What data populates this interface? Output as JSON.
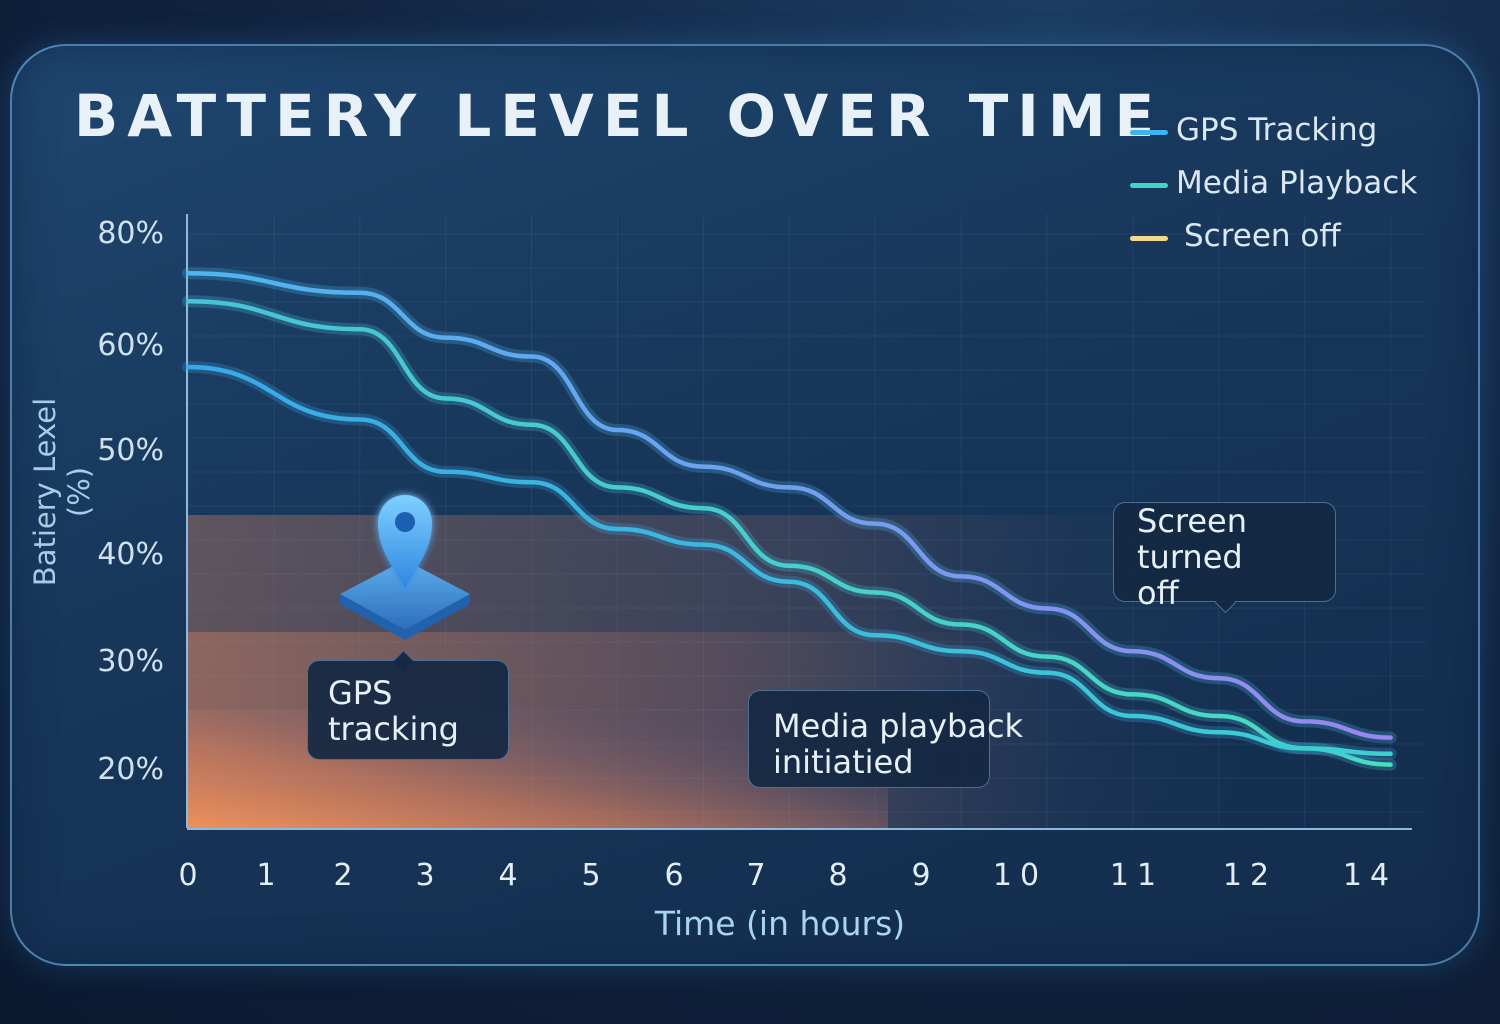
{
  "chart_data": {
    "type": "line",
    "title": "BATTERY LEVEL OVER TIME",
    "xlabel": "Time (in hours)",
    "ylabel": "Batiery Lexel (%)",
    "ylabel_lines": [
      "Batiery Lexel",
      "(%)"
    ],
    "x_tick_labels": [
      "0",
      "1",
      "2",
      "3",
      "4",
      "5",
      "6",
      "7",
      "8",
      "9",
      "10",
      "11",
      "12",
      "14"
    ],
    "y_tick_labels": [
      {
        "label": "80%",
        "value": 80
      },
      {
        "label": "60%",
        "value": 60
      },
      {
        "label": "50%",
        "value": 50
      },
      {
        "label": "40%",
        "value": 40
      },
      {
        "label": "30%",
        "value": 30
      },
      {
        "label": "20%",
        "value": 20
      }
    ],
    "legend_placement": "top-right",
    "grid": true,
    "legend": [
      {
        "name": "GPS Tracking",
        "color": "#3fb3f2"
      },
      {
        "name": "Media Playback",
        "color": "#3fd6c6"
      },
      {
        "name": "Screen off",
        "color": "#f2d98f"
      }
    ],
    "series": [
      {
        "color_top": "#4cb6f0",
        "color_end": "#9a86f0",
        "points": [
          [
            0,
            73
          ],
          [
            2,
            69.5
          ],
          [
            3,
            61.5
          ],
          [
            4,
            59
          ],
          [
            5,
            52
          ],
          [
            6,
            48.5
          ],
          [
            7,
            46.5
          ],
          [
            8,
            43
          ],
          [
            9,
            38
          ],
          [
            10,
            35
          ],
          [
            11,
            31
          ],
          [
            12,
            28.5
          ],
          [
            13,
            24.5
          ],
          [
            14,
            23
          ]
        ]
      },
      {
        "color_top": "#48c2d8",
        "color_end": "#48dcc0",
        "points": [
          [
            0,
            68
          ],
          [
            2,
            63
          ],
          [
            3,
            55
          ],
          [
            4,
            52.5
          ],
          [
            5,
            46.5
          ],
          [
            6,
            44.5
          ],
          [
            7,
            39
          ],
          [
            8,
            36.5
          ],
          [
            9,
            33.5
          ],
          [
            10,
            30.5
          ],
          [
            11,
            27
          ],
          [
            12,
            25
          ],
          [
            13,
            22
          ],
          [
            14,
            20.5
          ]
        ]
      },
      {
        "color_top": "#3aa8e8",
        "color_end": "#3cd0d0",
        "points": [
          [
            0,
            58
          ],
          [
            2,
            53
          ],
          [
            3,
            48
          ],
          [
            4,
            47
          ],
          [
            5,
            42.5
          ],
          [
            6,
            41
          ],
          [
            7,
            37.5
          ],
          [
            8,
            32.5
          ],
          [
            9,
            31
          ],
          [
            10,
            29
          ],
          [
            11,
            25
          ],
          [
            12,
            23.5
          ],
          [
            13,
            22
          ],
          [
            14,
            21.5
          ]
        ]
      }
    ],
    "annotations": [
      {
        "text": "GPS tracking",
        "x": 2.7
      },
      {
        "text": "Media playback initiatied",
        "x": 8
      },
      {
        "text": "Screen turned off",
        "x": 12
      }
    ]
  }
}
